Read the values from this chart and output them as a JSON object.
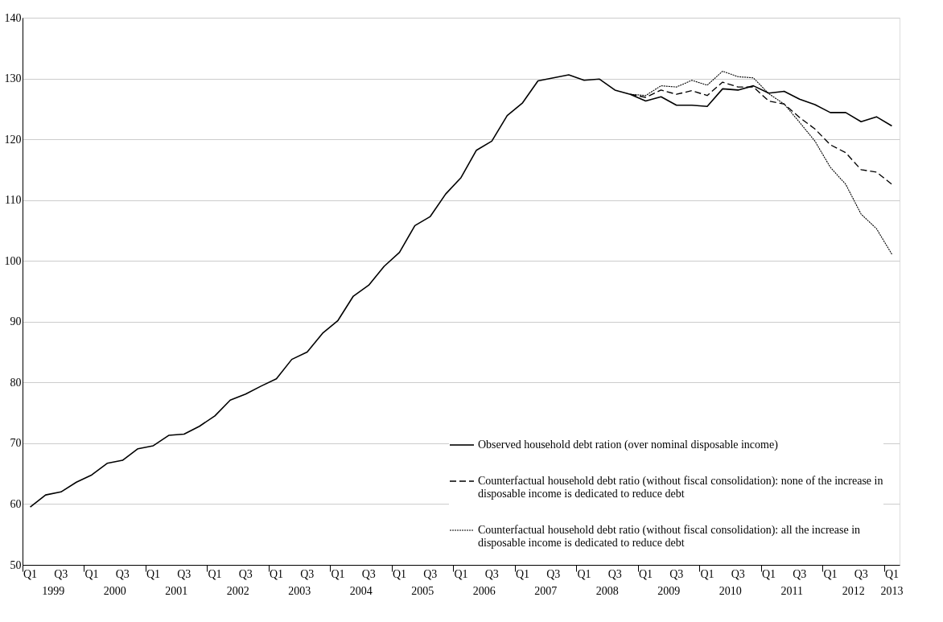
{
  "chart_data": {
    "type": "line",
    "categories": [
      "Q1",
      null,
      "Q3",
      null,
      "Q1",
      null,
      "Q3",
      null,
      "Q1",
      null,
      "Q3",
      null,
      "Q1",
      null,
      "Q3",
      null,
      "Q1",
      null,
      "Q3",
      null,
      "Q1",
      null,
      "Q3",
      null,
      "Q1",
      null,
      "Q3",
      null,
      "Q1",
      null,
      "Q3",
      null,
      "Q1",
      null,
      "Q3",
      null,
      "Q1",
      null,
      "Q3",
      null,
      "Q1",
      null,
      "Q3",
      null,
      "Q1",
      null,
      "Q3",
      null,
      "Q1",
      null,
      "Q3",
      null,
      "Q1",
      null,
      "Q3",
      null,
      "Q1"
    ],
    "series": [
      {
        "name": "Observed household debt ration (over nominal disposable income)",
        "color": "#000000",
        "line_style": "solid",
        "values": [
          59.5,
          61.5,
          62,
          63.6,
          64.8,
          66.7,
          67.2,
          69.1,
          69.6,
          71.3,
          71.5,
          72.8,
          74.5,
          77.1,
          78.1,
          79.4,
          80.6,
          83.8,
          85,
          88.1,
          90.2,
          94.2,
          96,
          99.1,
          101.4,
          105.8,
          107.3,
          111,
          113.7,
          118.2,
          119.7,
          123.9,
          126,
          129.6,
          130.1,
          130.6,
          129.7,
          129.9,
          128.1,
          127.4,
          126.3,
          127.0,
          125.6,
          125.6,
          125.4,
          128.3,
          128.1,
          128.8,
          127.6,
          127.9,
          126.6,
          125.7,
          124.4,
          124.4,
          122.9,
          123.7,
          122.2
        ]
      },
      {
        "name": "Counterfactual household debt ratio (without fiscal consolidation): none of the increase in disposable income is dedicated to reduce debt",
        "color": "#000000",
        "line_style": "dashed",
        "values": [
          null,
          null,
          null,
          null,
          null,
          null,
          null,
          null,
          null,
          null,
          null,
          null,
          null,
          null,
          null,
          null,
          null,
          null,
          null,
          null,
          null,
          null,
          null,
          null,
          null,
          null,
          null,
          null,
          null,
          null,
          null,
          null,
          null,
          null,
          null,
          null,
          null,
          null,
          null,
          127.4,
          126.9,
          128.1,
          127.4,
          128.0,
          127.2,
          129.4,
          128.6,
          128.6,
          126.3,
          125.8,
          123.6,
          121.7,
          119.1,
          117.8,
          115.0,
          114.6,
          112.6
        ]
      },
      {
        "name": "Counterfactual household debt ratio (without fiscal consolidation): all the increase in disposable income is dedicated to reduce debt",
        "color": "#000000",
        "line_style": "dotted",
        "values": [
          null,
          null,
          null,
          null,
          null,
          null,
          null,
          null,
          null,
          null,
          null,
          null,
          null,
          null,
          null,
          null,
          null,
          null,
          null,
          null,
          null,
          null,
          null,
          null,
          null,
          null,
          null,
          null,
          null,
          null,
          null,
          null,
          null,
          null,
          null,
          null,
          null,
          null,
          null,
          127.4,
          127.2,
          128.8,
          128.6,
          129.7,
          128.9,
          131.2,
          130.3,
          130.1,
          127.5,
          125.8,
          122.8,
          119.7,
          115.4,
          112.6,
          107.7,
          105.3,
          101.1
        ]
      }
    ],
    "annotations": [
      "1999",
      "2000",
      "2001",
      "2002",
      "2003",
      "2004",
      "2005",
      "2006",
      "2007",
      "2008",
      "2009",
      "2010",
      "2011",
      "2012",
      "2013"
    ],
    "ylim": [
      50,
      140
    ],
    "yticks": [
      50,
      60,
      70,
      80,
      90,
      100,
      110,
      120,
      130,
      140
    ],
    "grid": "y",
    "legend": "bottom right",
    "marker": "none"
  }
}
